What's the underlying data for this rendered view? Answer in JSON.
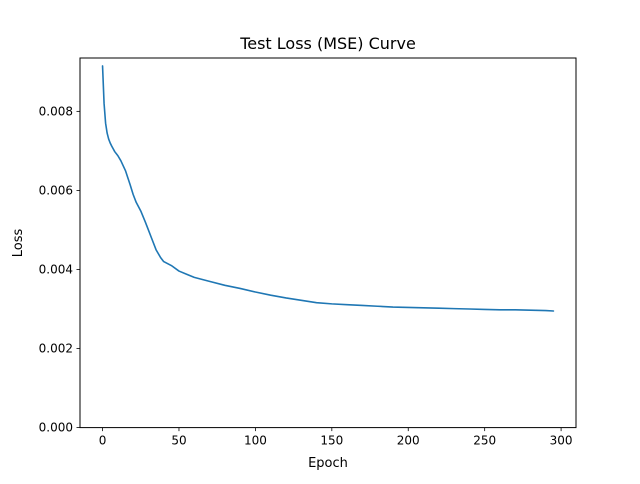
{
  "chart_data": {
    "type": "line",
    "title": "Test Loss (MSE) Curve",
    "xlabel": "Epoch",
    "ylabel": "Loss",
    "xlim": [
      -14.75,
      309.75
    ],
    "ylim": [
      0.0,
      0.00935
    ],
    "xticks": [
      0,
      50,
      100,
      150,
      200,
      250,
      300
    ],
    "xtick_labels": [
      "0",
      "50",
      "100",
      "150",
      "200",
      "250",
      "300"
    ],
    "yticks": [
      0.0,
      0.002,
      0.004,
      0.006,
      0.008
    ],
    "ytick_labels": [
      "0.000",
      "0.002",
      "0.004",
      "0.006",
      "0.008"
    ],
    "grid": false,
    "series": [
      {
        "color": "#1f77b4",
        "x": [
          0,
          1,
          2,
          3,
          4,
          5,
          6,
          7,
          8,
          10,
          12,
          15,
          18,
          20,
          22,
          25,
          28,
          30,
          32,
          35,
          38,
          40,
          45,
          50,
          55,
          60,
          70,
          80,
          90,
          100,
          110,
          120,
          130,
          140,
          150,
          160,
          170,
          180,
          190,
          200,
          210,
          220,
          230,
          240,
          250,
          260,
          270,
          280,
          290,
          295
        ],
        "y": [
          0.00915,
          0.0082,
          0.0077,
          0.00745,
          0.0073,
          0.0072,
          0.00712,
          0.00705,
          0.00698,
          0.00688,
          0.00675,
          0.0065,
          0.00615,
          0.0059,
          0.0057,
          0.00548,
          0.0052,
          0.005,
          0.0048,
          0.0045,
          0.0043,
          0.0042,
          0.0041,
          0.00396,
          0.00388,
          0.0038,
          0.0037,
          0.0036,
          0.00352,
          0.00343,
          0.00335,
          0.00328,
          0.00322,
          0.00316,
          0.00313,
          0.00311,
          0.00309,
          0.00307,
          0.00305,
          0.00304,
          0.00303,
          0.00302,
          0.00301,
          0.003,
          0.00299,
          0.00298,
          0.00298,
          0.00297,
          0.00296,
          0.00295
        ]
      }
    ]
  }
}
